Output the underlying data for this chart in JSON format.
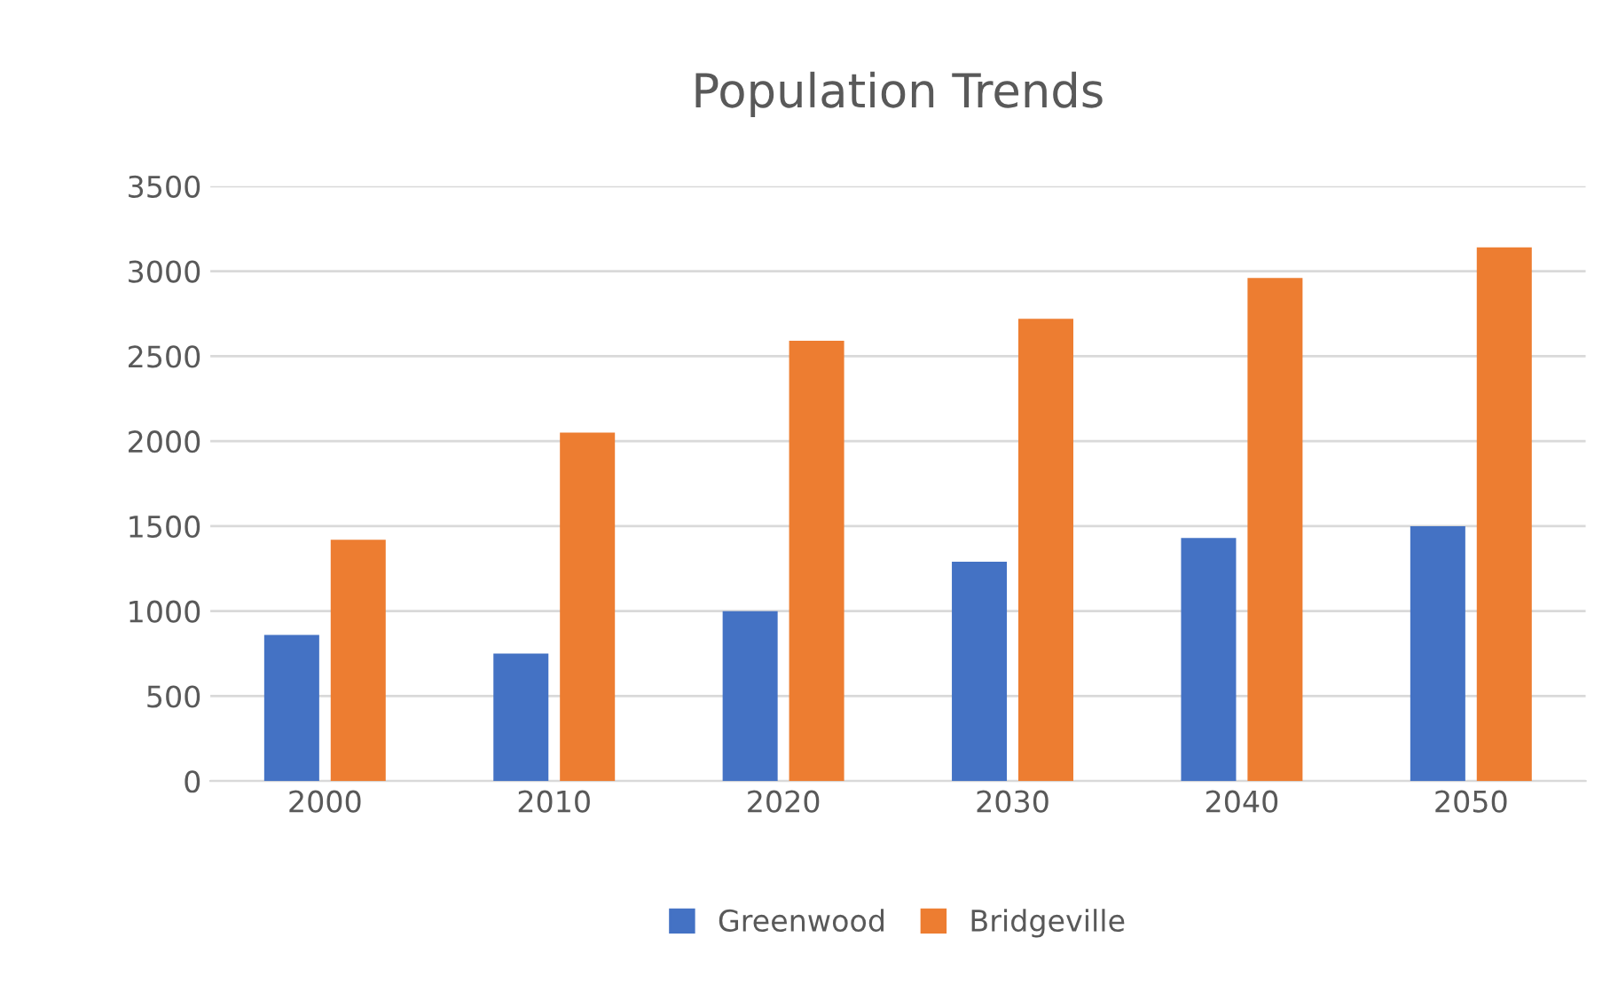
{
  "chart_data": {
    "type": "bar",
    "title": "Population Trends",
    "categories": [
      "2000",
      "2010",
      "2020",
      "2030",
      "2040",
      "2050"
    ],
    "series": [
      {
        "name": "Greenwood",
        "color": "#4472c4",
        "values": [
          860,
          750,
          1000,
          1290,
          1430,
          1500
        ]
      },
      {
        "name": "Bridgeville",
        "color": "#ed7d31",
        "values": [
          1420,
          2050,
          2590,
          2720,
          2960,
          3140
        ]
      }
    ],
    "ylim": [
      0,
      3500
    ],
    "yticks": [
      0,
      500,
      1000,
      1500,
      2000,
      2500,
      3000,
      3500
    ],
    "grid": "y",
    "legend": "bottom"
  }
}
